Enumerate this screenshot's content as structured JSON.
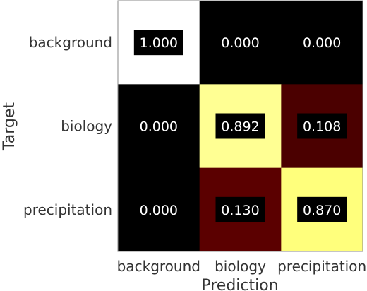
{
  "chart_data": {
    "type": "heatmap",
    "xlabel": "Prediction",
    "ylabel": "Target",
    "x_categories": [
      "background",
      "biology",
      "precipitation"
    ],
    "y_categories": [
      "background",
      "biology",
      "precipitation"
    ],
    "values": [
      [
        1.0,
        0.0,
        0.0
      ],
      [
        0.0,
        0.892,
        0.108
      ],
      [
        0.0,
        0.13,
        0.87
      ]
    ],
    "value_labels": [
      [
        "1.000",
        "0.000",
        "0.000"
      ],
      [
        "0.000",
        "0.892",
        "0.108"
      ],
      [
        "0.000",
        "0.130",
        "0.870"
      ]
    ],
    "colormap": "hot",
    "vmin": 0,
    "vmax": 1,
    "colors": {
      "text": "#333333",
      "cell_text": "#ffffff",
      "label_box": "#000000"
    }
  }
}
